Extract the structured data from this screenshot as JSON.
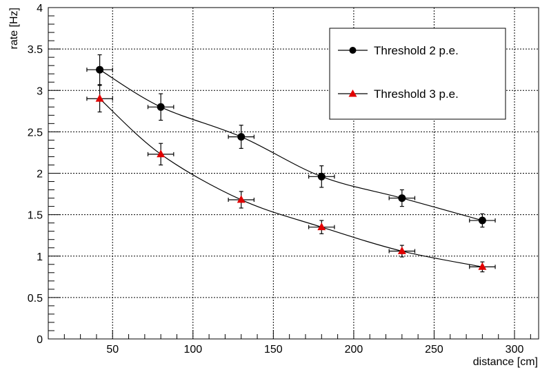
{
  "chart_data": {
    "type": "scatter",
    "xlabel": "distance [cm]",
    "ylabel": "rate [Hz]",
    "xlim": [
      10,
      315
    ],
    "ylim": [
      0,
      4
    ],
    "x_ticks": [
      50,
      100,
      150,
      200,
      250,
      300
    ],
    "x_tick_labels": [
      "50",
      "100",
      "150",
      "200",
      "250",
      "300"
    ],
    "y_ticks": [
      0,
      0.5,
      1,
      1.5,
      2,
      2.5,
      3,
      3.5,
      4
    ],
    "y_tick_labels": [
      "0",
      "0.5",
      "1",
      "1.5",
      "2",
      "2.5",
      "3",
      "3.5",
      "4"
    ],
    "grid": true,
    "legend_position": "top-right",
    "series": [
      {
        "name": "Threshold 2 p.e.",
        "color": "#000000",
        "marker": "circle",
        "x": [
          42,
          80,
          130,
          180,
          230,
          280
        ],
        "y": [
          3.25,
          2.8,
          2.44,
          1.96,
          1.7,
          1.43
        ],
        "x_err": [
          8,
          8,
          8,
          8,
          8,
          8
        ],
        "y_err": [
          0.18,
          0.16,
          0.14,
          0.13,
          0.1,
          0.08
        ],
        "fit_color": "#000000"
      },
      {
        "name": "Threshold 3 p.e.",
        "color": "#e00000",
        "marker": "triangle",
        "x": [
          42,
          80,
          130,
          180,
          230,
          280
        ],
        "y": [
          2.9,
          2.23,
          1.68,
          1.35,
          1.06,
          0.87
        ],
        "x_err": [
          8,
          8,
          8,
          8,
          8,
          8
        ],
        "y_err": [
          0.16,
          0.13,
          0.1,
          0.08,
          0.07,
          0.06
        ],
        "fit_color": "#000000"
      }
    ]
  }
}
